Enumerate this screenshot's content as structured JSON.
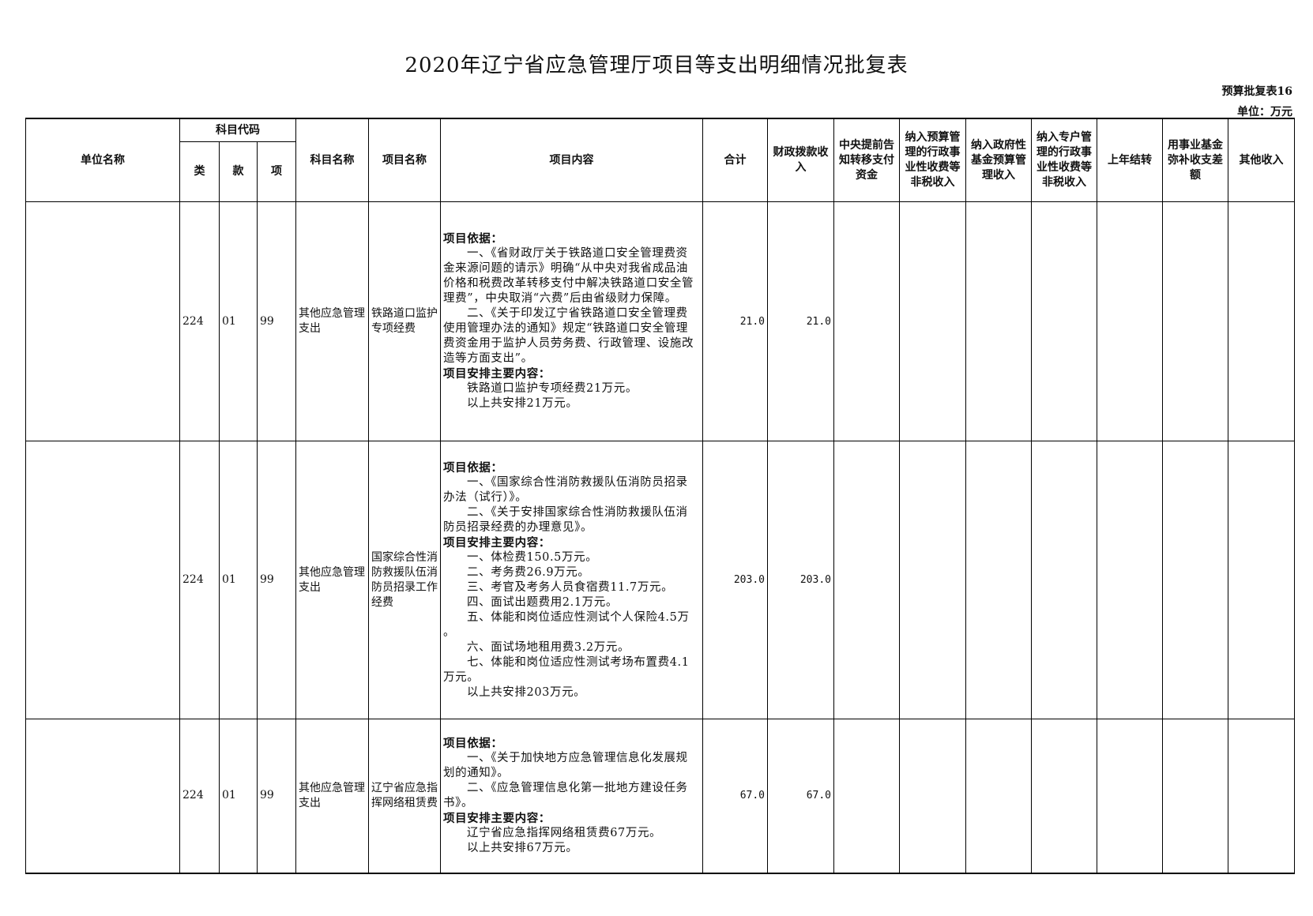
{
  "title": "2020年辽宁省应急管理厅项目等支出明细情况批复表",
  "table_no": "预算批复表16",
  "unit": "单位：万元",
  "headers": {
    "unit_name": "单位名称",
    "subject_code": "科目代码",
    "lei": "类",
    "kuan": "款",
    "xiang": "项",
    "subject_name": "科目名称",
    "project_name": "项目名称",
    "project_content": "项目内容",
    "total": "合计",
    "fiscal": "财政拨款收入",
    "central_advance": "中央提前告知转移支付资金",
    "budget_fees": "纳入预算管理的行政事业性收费等非税收入",
    "gov_fund": "纳入政府性基金预算管理收入",
    "special_account": "纳入专户管理的行政事业性收费等非税收入",
    "carryover": "上年结转",
    "fund_offset": "用事业基金弥补收支差额",
    "other": "其他收入"
  },
  "rows": [
    {
      "unit_name": "",
      "lei": "224",
      "kuan": "01",
      "xiang": "99",
      "subject_name": "其他应急管理支出",
      "project_name": "铁路道口监护专项经费",
      "content": [
        {
          "text": "项目依据：",
          "style": "b"
        },
        {
          "text": "一、《省财政厅关于铁路道口安全管理费资",
          "style": "i"
        },
        {
          "text": "金来源问题的请示》明确“从中央对我省成品油",
          "style": ""
        },
        {
          "text": "价格和税费改革转移支付中解决铁路道口安全管",
          "style": ""
        },
        {
          "text": "理费”，中央取消“六费”后由省级财力保障。",
          "style": ""
        },
        {
          "text": "二、《关于印发辽宁省铁路道口安全管理费",
          "style": "i"
        },
        {
          "text": "使用管理办法的通知》规定“铁路道口安全管理",
          "style": ""
        },
        {
          "text": "费资金用于监护人员劳务费、行政管理、设施改",
          "style": ""
        },
        {
          "text": "造等方面支出”。",
          "style": ""
        },
        {
          "text": "项目安排主要内容：",
          "style": "b"
        },
        {
          "text": "铁路道口监护专项经费21万元。",
          "style": "i"
        },
        {
          "text": "以上共安排21万元。",
          "style": "i"
        }
      ],
      "total": "21.0",
      "fiscal": "21.0"
    },
    {
      "unit_name": "",
      "lei": "224",
      "kuan": "01",
      "xiang": "99",
      "subject_name": "其他应急管理支出",
      "project_name": "国家综合性消防救援队伍消防员招录工作经费",
      "content": [
        {
          "text": "项目依据：",
          "style": "b"
        },
        {
          "text": "一、《国家综合性消防救援队伍消防员招录",
          "style": "i"
        },
        {
          "text": "办法（试行）》。",
          "style": ""
        },
        {
          "text": "二、《关于安排国家综合性消防救援队伍消",
          "style": "i"
        },
        {
          "text": "防员招录经费的办理意见》。",
          "style": ""
        },
        {
          "text": "项目安排主要内容：",
          "style": "b"
        },
        {
          "text": "一、体检费150.5万元。",
          "style": "i"
        },
        {
          "text": "二、考务费26.9万元。",
          "style": "i"
        },
        {
          "text": "三、考官及考务人员食宿费11.7万元。",
          "style": "i"
        },
        {
          "text": "四、面试出题费用2.1万元。",
          "style": "i"
        },
        {
          "text": "五、体能和岗位适应性测试个人保险4.5万",
          "style": "i"
        },
        {
          "text": "。",
          "style": ""
        },
        {
          "text": "六、面试场地租用费3.2万元。",
          "style": "i"
        },
        {
          "text": "七、体能和岗位适应性测试考场布置费4.1",
          "style": "i"
        },
        {
          "text": "万元。",
          "style": ""
        },
        {
          "text": "以上共安排203万元。",
          "style": "i"
        }
      ],
      "total": "203.0",
      "fiscal": "203.0"
    },
    {
      "unit_name": "",
      "lei": "224",
      "kuan": "01",
      "xiang": "99",
      "subject_name": "其他应急管理支出",
      "project_name": "辽宁省应急指挥网络租赁费",
      "content": [
        {
          "text": "项目依据：",
          "style": "b"
        },
        {
          "text": "一、《关于加快地方应急管理信息化发展规",
          "style": "i"
        },
        {
          "text": "划的通知》。",
          "style": ""
        },
        {
          "text": "二、《应急管理信息化第一批地方建设任务",
          "style": "i"
        },
        {
          "text": "书》。",
          "style": ""
        },
        {
          "text": "项目安排主要内容：",
          "style": "b"
        },
        {
          "text": "辽宁省应急指挥网络租赁费67万元。",
          "style": "i"
        },
        {
          "text": "以上共安排67万元。",
          "style": "i"
        }
      ],
      "total": "67.0",
      "fiscal": "67.0"
    }
  ]
}
